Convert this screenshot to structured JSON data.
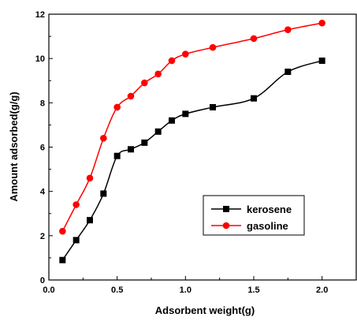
{
  "chart_data": {
    "type": "line",
    "xlabel": "Adsorbent weight(g)",
    "ylabel": "Amount adsorbed(g/g)",
    "xlim": [
      0.0,
      2.25
    ],
    "ylim": [
      0,
      12
    ],
    "xticks": [
      "0.0",
      "0.5",
      "1.0",
      "1.5",
      "2.0"
    ],
    "yticks": [
      "0",
      "2",
      "4",
      "6",
      "8",
      "10",
      "12"
    ],
    "grid": false,
    "legend_position": "lower-right",
    "series": [
      {
        "name": "kerosene",
        "color": "#000000",
        "marker": "square",
        "x": [
          0.1,
          0.2,
          0.3,
          0.4,
          0.5,
          0.6,
          0.7,
          0.8,
          0.9,
          1.0,
          1.2,
          1.5,
          1.75,
          2.0
        ],
        "y": [
          0.9,
          1.8,
          2.7,
          3.9,
          5.6,
          5.9,
          6.2,
          6.7,
          7.2,
          7.5,
          7.8,
          8.2,
          9.4,
          9.9
        ]
      },
      {
        "name": "gasoline",
        "color": "#ff0000",
        "marker": "circle",
        "x": [
          0.1,
          0.2,
          0.3,
          0.4,
          0.5,
          0.6,
          0.7,
          0.8,
          0.9,
          1.0,
          1.2,
          1.5,
          1.75,
          2.0
        ],
        "y": [
          2.2,
          3.4,
          4.6,
          6.4,
          7.8,
          8.3,
          8.9,
          9.3,
          9.9,
          10.2,
          10.5,
          10.9,
          11.3,
          11.6
        ]
      }
    ]
  }
}
